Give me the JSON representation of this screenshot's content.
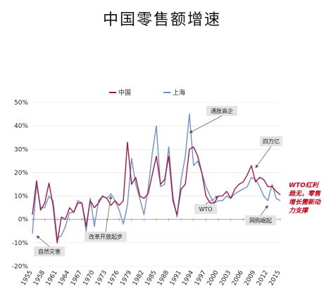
{
  "chart_data": {
    "type": "line",
    "title": "中国零售额增速",
    "x": [
      1955,
      1956,
      1957,
      1958,
      1959,
      1960,
      1961,
      1962,
      1963,
      1964,
      1965,
      1966,
      1967,
      1968,
      1969,
      1970,
      1971,
      1972,
      1973,
      1974,
      1975,
      1976,
      1977,
      1978,
      1979,
      1980,
      1981,
      1982,
      1983,
      1984,
      1985,
      1986,
      1987,
      1988,
      1989,
      1990,
      1991,
      1992,
      1993,
      1994,
      1995,
      1996,
      1997,
      1998,
      1999,
      2000,
      2001,
      2002,
      2003,
      2004,
      2005,
      2006,
      2007,
      2008,
      2009,
      2010,
      2011,
      2012,
      2013,
      2014,
      2015
    ],
    "x_tick_labels": [
      "1955",
      "1958",
      "1961",
      "1964",
      "1967",
      "1970",
      "1973",
      "1976",
      "1979",
      "1982",
      "1985",
      "1988",
      "1991",
      "1994",
      "1997",
      "2000",
      "2003",
      "2006",
      "2009",
      "2012",
      "2015"
    ],
    "ylim": [
      -20,
      50
    ],
    "y_tick_labels": [
      "50%",
      "40%",
      "30%",
      "20%",
      "10%",
      "0%",
      "-10%",
      "-20%"
    ],
    "y_ticks": [
      50,
      40,
      30,
      20,
      10,
      0,
      -10,
      -20
    ],
    "series": [
      {
        "name": "中国",
        "color": "#a3174a",
        "values": [
          2,
          16.5,
          4,
          7,
          15.5,
          6,
          -10,
          1,
          0,
          5,
          3,
          7,
          7,
          -3,
          8,
          5,
          7,
          10,
          9,
          6,
          8,
          6,
          8,
          33,
          15,
          18,
          10,
          9,
          11,
          19,
          27,
          15,
          17,
          27,
          8,
          2,
          13,
          15,
          30,
          31,
          27,
          20,
          10,
          7,
          7,
          10,
          10,
          12,
          9,
          13,
          15,
          16,
          19,
          23,
          16,
          18,
          17,
          14,
          14,
          12,
          10.5
        ]
      },
      {
        "name": "上海",
        "color": "#6f8fd0",
        "values": [
          -6,
          15,
          5,
          5,
          10,
          8,
          -8,
          -7,
          -3,
          3,
          3,
          8,
          7,
          -5,
          9,
          -3,
          8,
          10,
          9,
          11,
          8,
          4,
          -2,
          6,
          26,
          15,
          9,
          2,
          13,
          28,
          40,
          14,
          15,
          31,
          10,
          1,
          17,
          27,
          45,
          23,
          25,
          20,
          14,
          10,
          7,
          8,
          8,
          10,
          9,
          11,
          12,
          13,
          14,
          18,
          17,
          14,
          10,
          8,
          15,
          9,
          8
        ]
      }
    ],
    "legend": {
      "placement": "top-center"
    },
    "annotations": [
      {
        "label": "通胀高企",
        "x": 1993,
        "y": 37
      },
      {
        "label": "四万亿",
        "x": 2009,
        "y": 22
      },
      {
        "label": "WTO",
        "x": 2000,
        "y": 10
      },
      {
        "label": "网购崛起",
        "x": 2012,
        "y": 6
      },
      {
        "label": "改革开放起步",
        "x": 1974,
        "y": 10
      },
      {
        "label": "自然灾害",
        "x": 1956,
        "y": -7
      }
    ],
    "side_note": [
      "WTO红利",
      "趋无，零售",
      "增长需新动",
      "力支撑"
    ]
  }
}
